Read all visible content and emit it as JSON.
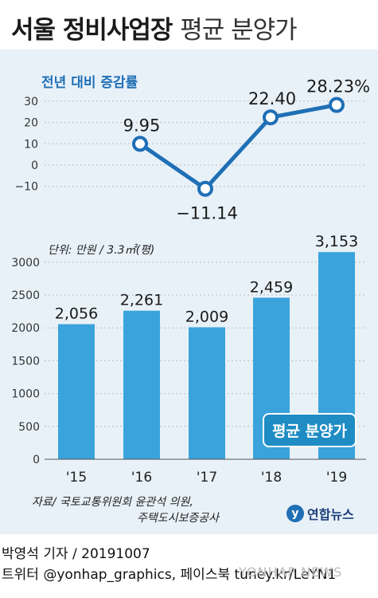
{
  "title": {
    "main": "서울 정비사업장",
    "sub": "평균 분양가"
  },
  "chart_data": [
    {
      "type": "line",
      "title": "전년 대비 증감률",
      "x": [
        "'16",
        "'17",
        "'18",
        "'19"
      ],
      "values": [
        9.95,
        -11.14,
        22.4,
        28.23
      ],
      "labels": [
        "9.95",
        "−11.14",
        "22.40",
        "28.23%"
      ],
      "yticks": [
        "30",
        "20",
        "10",
        "0",
        "−10"
      ],
      "ylim": [
        -15,
        32
      ],
      "color": "#1f6fb5"
    },
    {
      "type": "bar",
      "unit_label": "단위: 만원 / 3.3㎡(평)",
      "categories": [
        "'15",
        "'16",
        "'17",
        "'18",
        "'19"
      ],
      "values": [
        2056,
        2261,
        2009,
        2459,
        3153
      ],
      "labels": [
        "2,056",
        "2,261",
        "2,009",
        "2,459",
        "3,153"
      ],
      "yticks": [
        "3000",
        "2500",
        "2000",
        "1500",
        "1000",
        "500",
        "0"
      ],
      "ylim": [
        0,
        3200
      ],
      "legend": "평균 분양가",
      "color": "#3aa3dc"
    }
  ],
  "source": {
    "line1": "자료/ 국토교통위원회 윤관석 의원,",
    "line2": "주택도시보증공사"
  },
  "logo": {
    "text": "연합뉴스"
  },
  "footer": {
    "line1": "박영석 기자 /  20191007",
    "line2": "트위터 @yonhap_graphics, 페이스북 tuney.kr/LeYN1"
  },
  "watermark": "YONHAP NEWS"
}
